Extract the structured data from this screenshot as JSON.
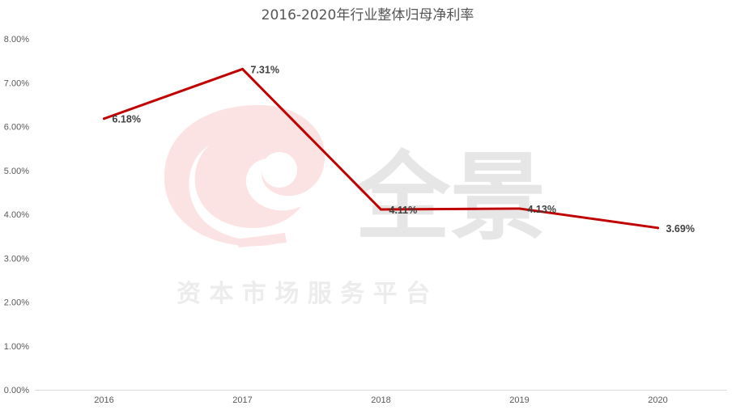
{
  "watermark": {
    "brand": "全景",
    "tagline": "资 本 市 场 服 务 平 台"
  },
  "chart_data": {
    "type": "line",
    "title": "2016-2020年行业整体归母净利率",
    "xlabel": "",
    "ylabel": "",
    "categories": [
      "2016",
      "2017",
      "2018",
      "2019",
      "2020"
    ],
    "series": [
      {
        "values": [
          6.18,
          7.31,
          4.11,
          4.13,
          3.69
        ],
        "labels": [
          "6.18%",
          "7.31%",
          "4.11%",
          "4.13%",
          "3.69%"
        ],
        "color": "#c00000"
      }
    ],
    "ylim": [
      0,
      8
    ],
    "yticks": [
      "0.00%",
      "1.00%",
      "2.00%",
      "3.00%",
      "4.00%",
      "5.00%",
      "6.00%",
      "7.00%",
      "8.00%"
    ],
    "grid": false,
    "legend": "none"
  }
}
